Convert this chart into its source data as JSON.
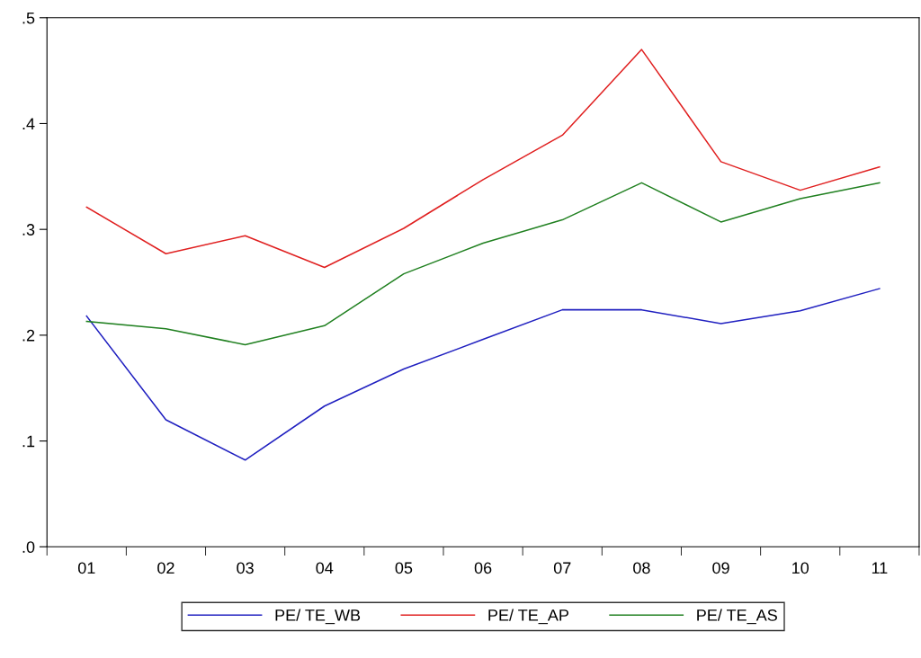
{
  "chart_data": {
    "type": "line",
    "categories": [
      "01",
      "02",
      "03",
      "04",
      "05",
      "06",
      "07",
      "08",
      "09",
      "10",
      "11"
    ],
    "series": [
      {
        "name": "PE/ TE_WB",
        "color": "#2020c0",
        "values": [
          0.218,
          0.12,
          0.082,
          0.133,
          0.168,
          0.196,
          0.224,
          0.224,
          0.211,
          0.223,
          0.244
        ]
      },
      {
        "name": "PE/ TE_AP",
        "color": "#e02020",
        "values": [
          0.321,
          0.277,
          0.294,
          0.264,
          0.301,
          0.347,
          0.389,
          0.47,
          0.364,
          0.337,
          0.359
        ]
      },
      {
        "name": "PE/ TE_AS",
        "color": "#208020",
        "values": [
          0.213,
          0.206,
          0.191,
          0.209,
          0.258,
          0.287,
          0.309,
          0.344,
          0.307,
          0.329,
          0.344
        ]
      }
    ],
    "ylim": [
      0,
      0.5
    ],
    "yticks": [
      {
        "value": 0,
        "label": ".0"
      },
      {
        "value": 0.1,
        "label": ".1"
      },
      {
        "value": 0.2,
        "label": ".2"
      },
      {
        "value": 0.3,
        "label": ".3"
      },
      {
        "value": 0.4,
        "label": ".4"
      },
      {
        "value": 0.5,
        "label": ".5"
      }
    ],
    "grid": false,
    "legend": "bottom",
    "marker": "none",
    "line_style": "solid"
  }
}
